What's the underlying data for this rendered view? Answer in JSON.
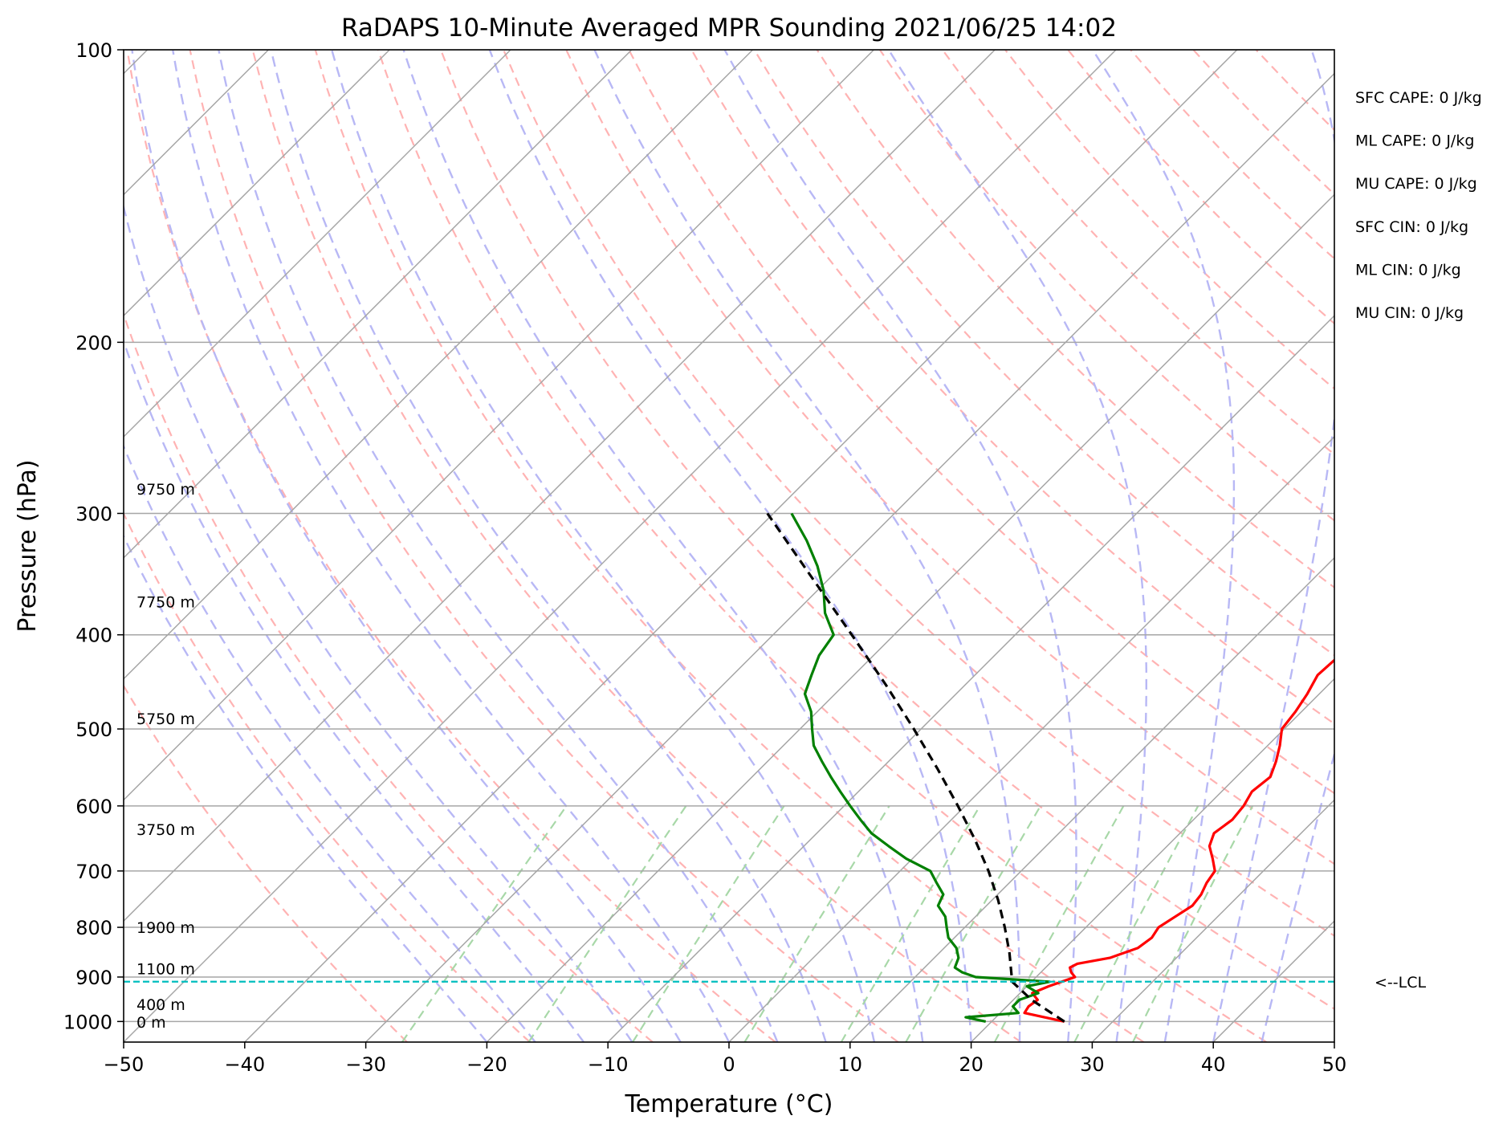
{
  "chart_data": {
    "type": "line",
    "chart_kind": "skew-t log-p sounding",
    "title": "RaDAPS 10-Minute Averaged MPR Sounding 2021/06/25 14:02",
    "xlabel": "Temperature (°C)",
    "ylabel": "Pressure (hPa)",
    "xlim": [
      -50,
      50
    ],
    "ylim": [
      1050,
      100
    ],
    "y_scale": "log",
    "grid": true,
    "x_ticks": [
      "−50",
      "−40",
      "−30",
      "−20",
      "−10",
      "0",
      "10",
      "20",
      "30",
      "40",
      "50"
    ],
    "x_tick_values": [
      -50,
      -40,
      -30,
      -20,
      -10,
      0,
      10,
      20,
      30,
      40,
      50
    ],
    "y_ticks": [
      "1000",
      "900",
      "800",
      "700",
      "600",
      "500",
      "400",
      "300",
      "200",
      "100"
    ],
    "y_tick_values": [
      1000,
      900,
      800,
      700,
      600,
      500,
      400,
      300,
      200,
      100
    ],
    "height_labels": [
      {
        "text": "9750 m",
        "p": 283
      },
      {
        "text": "7750 m",
        "p": 370
      },
      {
        "text": "5750 m",
        "p": 488
      },
      {
        "text": "3750 m",
        "p": 634
      },
      {
        "text": "1900 m",
        "p": 800
      },
      {
        "text": "1100 m",
        "p": 882
      },
      {
        "text": "400 m",
        "p": 960
      },
      {
        "text": "0 m",
        "p": 1001
      }
    ],
    "lcl": {
      "label": "<--LCL",
      "p": 910
    },
    "indices": [
      "SFC CAPE: 0 J/kg",
      "ML CAPE: 0 J/kg",
      "MU CAPE: 0 J/kg",
      "SFC CIN: 0 J/kg",
      "ML CIN: 0 J/kg",
      "MU CIN: 0 J/kg"
    ],
    "colors": {
      "temperature": "#ff0000",
      "dewpoint": "#008000",
      "parcel": "#000000",
      "lcl": "#00bfbf",
      "dry_adiabat": "#ffb3b3",
      "moist_adiabat": "#b8b8f5",
      "mixing_ratio": "#a8d8a8",
      "isotherm": "#a6a6a6",
      "isobar": "#a6a6a6"
    },
    "series": [
      {
        "key": "temperature",
        "p": [
          1000,
          990,
          980,
          965,
          950,
          935,
          920,
          910,
          900,
          890,
          880,
          872,
          860,
          840,
          820,
          800,
          780,
          760,
          740,
          720,
          700,
          680,
          660,
          640,
          620,
          600,
          580,
          560,
          540,
          520,
          500,
          480,
          460,
          440,
          420,
          400,
          380,
          360,
          340,
          320,
          300
        ],
        "values": [
          26.0,
          24.0,
          22.0,
          21.8,
          22.0,
          21.0,
          21.8,
          22.5,
          23.2,
          22.5,
          22.0,
          22.3,
          24.5,
          26.0,
          26.3,
          26.0,
          26.5,
          27.0,
          26.8,
          26.3,
          26.0,
          24.8,
          23.5,
          22.8,
          23.2,
          23.0,
          22.5,
          22.8,
          22.0,
          21.0,
          19.8,
          19.5,
          19.0,
          18.3,
          18.5,
          17.5,
          16.5,
          15.0,
          14.0,
          12.5,
          11.2
        ]
      },
      {
        "key": "dewpoint",
        "p": [
          1000,
          990,
          980,
          965,
          950,
          935,
          920,
          910,
          900,
          890,
          880,
          860,
          840,
          820,
          800,
          780,
          760,
          740,
          720,
          700,
          680,
          660,
          640,
          620,
          600,
          580,
          560,
          540,
          520,
          500,
          480,
          460,
          440,
          420,
          400,
          380,
          360,
          340,
          320,
          300
        ],
        "values": [
          19.5,
          17.5,
          21.5,
          20.5,
          20.5,
          21.5,
          20.0,
          21.5,
          15.0,
          13.5,
          12.5,
          12.0,
          11.0,
          9.5,
          8.5,
          7.5,
          6.0,
          5.5,
          4.0,
          2.5,
          -0.5,
          -3.0,
          -5.5,
          -7.5,
          -9.5,
          -11.5,
          -13.5,
          -15.5,
          -17.5,
          -19.0,
          -20.5,
          -22.5,
          -23.5,
          -24.5,
          -25.0,
          -27.5,
          -29.5,
          -32.0,
          -35.0,
          -38.5
        ]
      },
      {
        "key": "parcel",
        "p": [
          1000,
          950,
          910,
          850,
          800,
          750,
          700,
          650,
          600,
          550,
          500,
          450,
          400,
          350,
          300
        ],
        "values": [
          26.0,
          21.5,
          18.4,
          15.8,
          13.3,
          10.5,
          7.3,
          3.6,
          -0.6,
          -5.3,
          -10.6,
          -16.6,
          -23.5,
          -31.4,
          -40.5
        ]
      }
    ]
  }
}
